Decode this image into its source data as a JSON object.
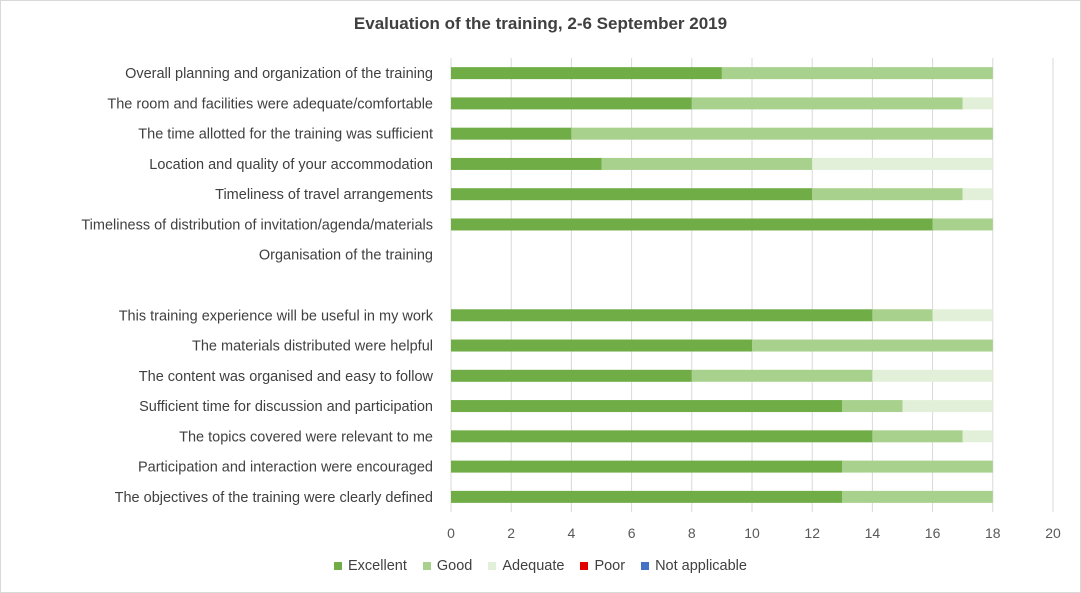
{
  "chart_data": {
    "type": "bar",
    "orientation": "horizontal",
    "stacked": true,
    "title": "Evaluation of the training, 2-6 September 2019",
    "xlabel": "",
    "ylabel": "",
    "xlim": [
      0,
      20
    ],
    "x_ticks": [
      "0",
      "2",
      "4",
      "6",
      "8",
      "10",
      "12",
      "14",
      "16",
      "18",
      "20"
    ],
    "grid": "vertical",
    "legend_position": "bottom",
    "categories": [
      "Overall planning and organization of the training",
      "The room and facilities were adequate/comfortable",
      "The time allotted for the training was sufficient",
      "Location and quality of your accommodation",
      "Timeliness of travel arrangements",
      "Timeliness of distribution of invitation/agenda/materials",
      "Organisation of the training",
      "",
      "This training experience will be useful in my work",
      "The materials distributed were helpful",
      "The content was organised and easy to follow",
      "Sufficient time for discussion and participation",
      "The topics covered were relevant to me",
      "Participation and interaction were encouraged",
      "The objectives of the training were clearly defined"
    ],
    "series": [
      {
        "name": "Excellent",
        "color": "#70ad47",
        "values": [
          9,
          8,
          4,
          5,
          12,
          16,
          0,
          0,
          14,
          10,
          8,
          13,
          14,
          13,
          13
        ]
      },
      {
        "name": "Good",
        "color": "#a9d18e",
        "values": [
          9,
          9,
          14,
          7,
          5,
          2,
          0,
          0,
          2,
          8,
          6,
          2,
          3,
          5,
          5
        ]
      },
      {
        "name": "Adequate",
        "color": "#e2f0d9",
        "values": [
          0,
          1,
          0,
          6,
          1,
          0,
          0,
          0,
          2,
          0,
          4,
          3,
          1,
          0,
          0
        ]
      },
      {
        "name": "Poor",
        "color": "#e00000",
        "values": [
          0,
          0,
          0,
          0,
          0,
          0,
          0,
          0,
          0,
          0,
          0,
          0,
          0,
          0,
          0
        ]
      },
      {
        "name": "Not applicable",
        "color": "#4472c4",
        "values": [
          0,
          0,
          0,
          0,
          0,
          0,
          0,
          0,
          0,
          0,
          0,
          0,
          0,
          0,
          0
        ]
      }
    ]
  }
}
